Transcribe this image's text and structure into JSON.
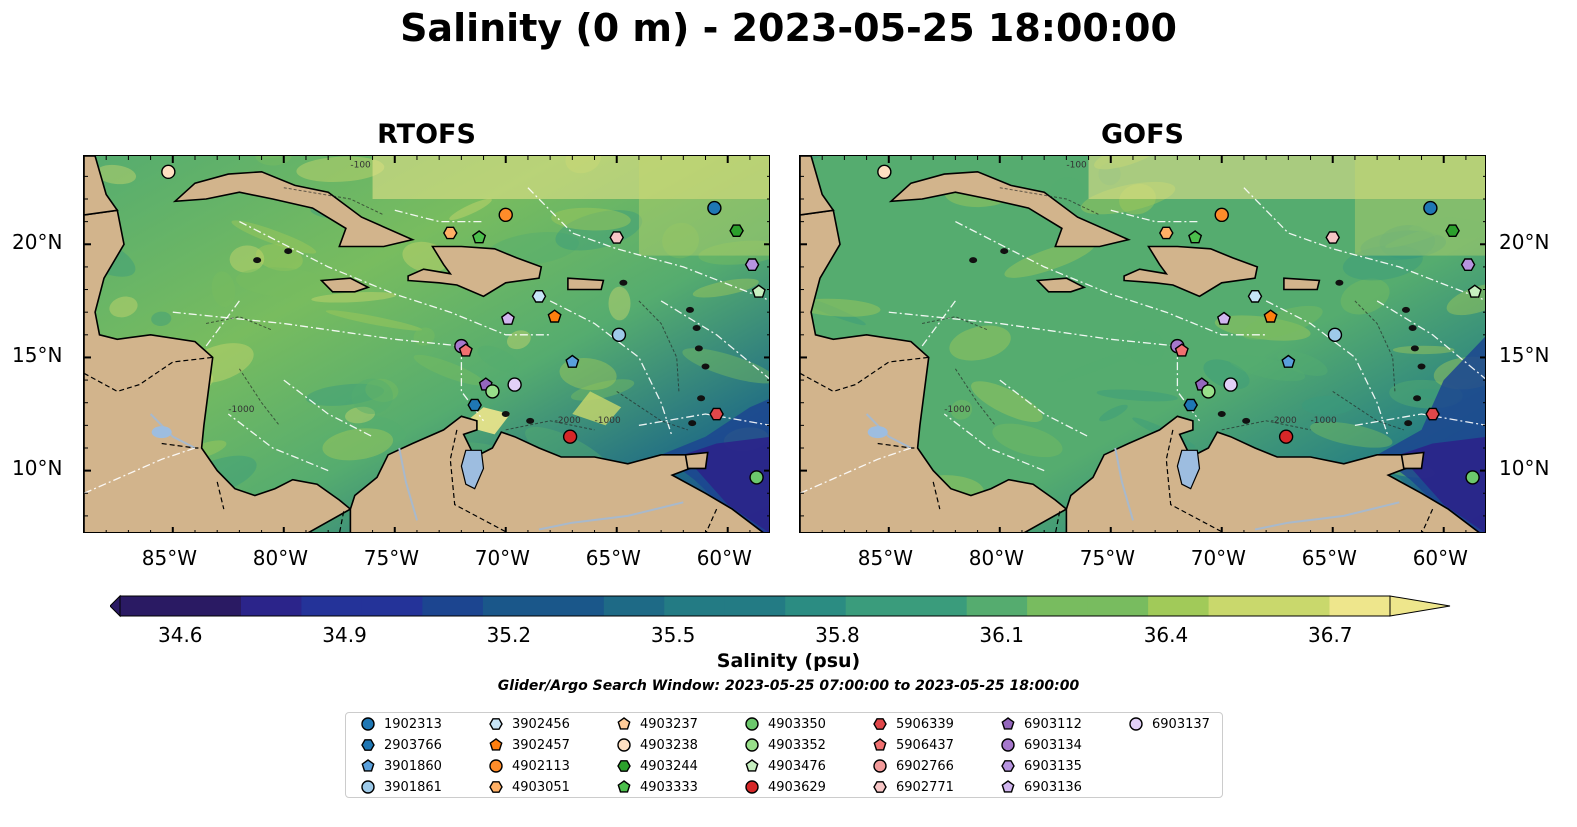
{
  "title": "Salinity (0 m) - 2023-05-25 18:00:00",
  "panels": [
    {
      "id": "rtofs",
      "title": "RTOFS"
    },
    {
      "id": "gofs",
      "title": "GOFS"
    }
  ],
  "axes": {
    "lon_ticks": [
      "85°W",
      "80°W",
      "75°W",
      "70°W",
      "65°W",
      "60°W"
    ],
    "lat_ticks": [
      "20°N",
      "15°N",
      "10°N"
    ]
  },
  "colorbar": {
    "title": "Salinity (psu)",
    "ticks": [
      "34.6",
      "34.9",
      "35.2",
      "35.5",
      "35.8",
      "36.1",
      "36.4",
      "36.7"
    ],
    "colormap": "haline",
    "range": [
      34.6,
      36.7
    ]
  },
  "search_window": "Glider/Argo Search Window: 2023-05-25 07:00:00 to 2023-05-25 18:00:00",
  "contour_labels": [
    "-100",
    "-1000",
    "-2000"
  ],
  "colors": {
    "land": "#d2b48c",
    "lakes": "#9dbde0",
    "rivers": "#a8b9cc",
    "low_salinity": "#2a1d5e",
    "high_salinity": "#f2e88c"
  },
  "legend": [
    {
      "id": "1902313",
      "marker": "circle",
      "color": "#1f77b4"
    },
    {
      "id": "2903766",
      "marker": "hexagon",
      "color": "#1f77b4"
    },
    {
      "id": "3901860",
      "marker": "pentagon",
      "color": "#5aa0dc"
    },
    {
      "id": "3901861",
      "marker": "circle",
      "color": "#9ecae9"
    },
    {
      "id": "3902456",
      "marker": "hexagon",
      "color": "#c6e4f7"
    },
    {
      "id": "3902457",
      "marker": "pentagon",
      "color": "#ff7f0e"
    },
    {
      "id": "4902113",
      "marker": "circle",
      "color": "#ff8c2a"
    },
    {
      "id": "4903051",
      "marker": "hexagon",
      "color": "#ffb066"
    },
    {
      "id": "4903237",
      "marker": "pentagon",
      "color": "#ffcc99"
    },
    {
      "id": "4903238",
      "marker": "circle",
      "color": "#ffe0c2"
    },
    {
      "id": "4903244",
      "marker": "hexagon",
      "color": "#2ca02c"
    },
    {
      "id": "4903333",
      "marker": "pentagon",
      "color": "#4cbf4c"
    },
    {
      "id": "4903350",
      "marker": "circle",
      "color": "#6cc86c"
    },
    {
      "id": "4903352",
      "marker": "circle",
      "color": "#98df8a"
    },
    {
      "id": "4903476",
      "marker": "pentagon",
      "color": "#c7f0c0"
    },
    {
      "id": "4903629",
      "marker": "circle",
      "color": "#d62728"
    },
    {
      "id": "5906339",
      "marker": "hexagon",
      "color": "#e0474a"
    },
    {
      "id": "5906437",
      "marker": "pentagon",
      "color": "#f07070"
    },
    {
      "id": "6902766",
      "marker": "circle",
      "color": "#f29a9a"
    },
    {
      "id": "6902771",
      "marker": "hexagon",
      "color": "#f7c6c6"
    },
    {
      "id": "6903112",
      "marker": "pentagon",
      "color": "#9467bd"
    },
    {
      "id": "6903134",
      "marker": "circle",
      "color": "#a678cc"
    },
    {
      "id": "6903135",
      "marker": "hexagon",
      "color": "#b794e0"
    },
    {
      "id": "6903136",
      "marker": "pentagon",
      "color": "#d1b6ef"
    },
    {
      "id": "6903137",
      "marker": "circle",
      "color": "#e2d0f7"
    }
  ],
  "observations": [
    {
      "id": "4903238",
      "lon": -85.2,
      "lat": 23.2
    },
    {
      "id": "4902113",
      "lon": -70.0,
      "lat": 21.3
    },
    {
      "id": "1902313",
      "lon": -60.6,
      "lat": 21.6
    },
    {
      "id": "4903244",
      "lon": -59.6,
      "lat": 20.6
    },
    {
      "id": "4903051",
      "lon": -72.5,
      "lat": 20.5
    },
    {
      "id": "4903333",
      "lon": -71.2,
      "lat": 20.3
    },
    {
      "id": "6902771",
      "lon": -65.0,
      "lat": 20.3
    },
    {
      "id": "6903135",
      "lon": -58.9,
      "lat": 19.1
    },
    {
      "id": "4903476",
      "lon": -58.6,
      "lat": 17.9
    },
    {
      "id": "3902456",
      "lon": -68.5,
      "lat": 17.7
    },
    {
      "id": "3902457",
      "lon": -67.8,
      "lat": 16.8
    },
    {
      "id": "6903136",
      "lon": -69.9,
      "lat": 16.7
    },
    {
      "id": "3901861",
      "lon": -64.9,
      "lat": 16.0
    },
    {
      "id": "6903134",
      "lon": -72.0,
      "lat": 15.5
    },
    {
      "id": "5906437",
      "lon": -71.8,
      "lat": 15.3
    },
    {
      "id": "3901860",
      "lon": -67.0,
      "lat": 14.8
    },
    {
      "id": "6903112",
      "lon": -70.9,
      "lat": 13.8
    },
    {
      "id": "4903352",
      "lon": -70.6,
      "lat": 13.5
    },
    {
      "id": "6903137",
      "lon": -69.6,
      "lat": 13.8
    },
    {
      "id": "2903766",
      "lon": -71.4,
      "lat": 12.9
    },
    {
      "id": "5906339",
      "lon": -60.5,
      "lat": 12.5
    },
    {
      "id": "4903629",
      "lon": -67.1,
      "lat": 11.5
    },
    {
      "id": "4903350",
      "lon": -58.7,
      "lat": 9.7
    }
  ]
}
